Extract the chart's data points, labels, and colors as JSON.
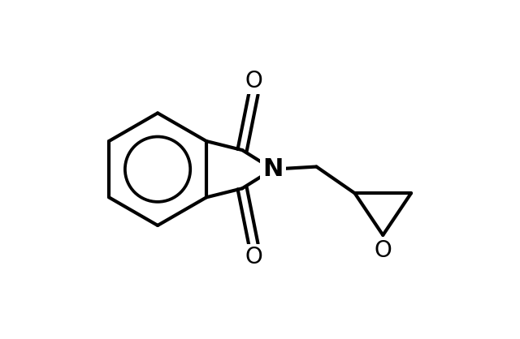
{
  "background_color": "#ffffff",
  "line_color": "#000000",
  "line_width": 3.0,
  "figsize": [
    6.4,
    4.18
  ],
  "dpi": 100,
  "xlim": [
    0,
    10
  ],
  "ylim": [
    0,
    6.55
  ]
}
